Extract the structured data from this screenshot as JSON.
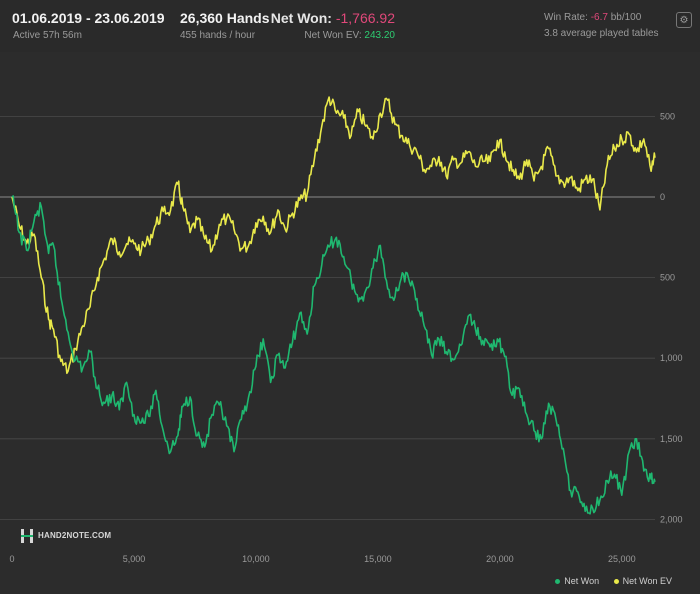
{
  "header": {
    "date_range": "01.06.2019 - 23.06.2019",
    "active": "Active 57h 56m",
    "hands": "26,360 Hands",
    "hands_per_hour": "455 hands / hour",
    "net_won_label": "Net Won:",
    "net_won_value": "-1,766.92",
    "net_won_ev_label": "Net Won  EV:",
    "net_won_ev_value": "243.20",
    "win_rate_label": "Win Rate:",
    "win_rate_value": "-6.7",
    "win_rate_unit": "bb/100",
    "avg_tables": "3.8 average played tables",
    "settings_icon": "gear-icon"
  },
  "logo_text": "HAND2NOTE.COM",
  "colors": {
    "net_won": "#1fb870",
    "net_won_ev": "#e9e94a",
    "background": "#2c2c2c"
  },
  "chart_data": {
    "type": "line",
    "xlim": [
      0,
      26360
    ],
    "ylim": [
      -2050,
      750
    ],
    "x_ticks": [
      {
        "value": 0,
        "label": "0"
      },
      {
        "value": 5000,
        "label": "5,000"
      },
      {
        "value": 10000,
        "label": "10,000"
      },
      {
        "value": 15000,
        "label": "15,000"
      },
      {
        "value": 20000,
        "label": "20,000"
      },
      {
        "value": 25000,
        "label": "25,000"
      }
    ],
    "y_ticks": [
      {
        "value": 500,
        "label": "500"
      },
      {
        "value": 0,
        "label": "0"
      },
      {
        "value": -500,
        "label": "500"
      },
      {
        "value": -1000,
        "label": "1,000"
      },
      {
        "value": -1500,
        "label": "1,500"
      },
      {
        "value": -2000,
        "label": "2,000"
      }
    ],
    "grid": true,
    "legend_position": "bottom-right",
    "series": [
      {
        "name": "Net Won",
        "color": "#1fb870",
        "x": [
          0,
          300,
          600,
          900,
          1200,
          1500,
          1700,
          2000,
          2300,
          2600,
          2900,
          3200,
          3500,
          3800,
          4100,
          4400,
          4700,
          5000,
          5300,
          5600,
          5900,
          6200,
          6500,
          6800,
          7000,
          7300,
          7600,
          7900,
          8200,
          8500,
          8800,
          9100,
          9400,
          9700,
          10000,
          10300,
          10600,
          10900,
          11200,
          11500,
          11800,
          12100,
          12400,
          12700,
          13000,
          13300,
          13600,
          13900,
          14200,
          14500,
          14800,
          15100,
          15400,
          15700,
          16000,
          16300,
          16600,
          16900,
          17200,
          17500,
          17800,
          18100,
          18400,
          18700,
          19000,
          19300,
          19600,
          19900,
          20200,
          20500,
          20800,
          21100,
          21400,
          21700,
          22000,
          22300,
          22600,
          22900,
          23200,
          23500,
          23800,
          24100,
          24400,
          24700,
          25000,
          25300,
          25600,
          25900,
          26200,
          26360
        ],
        "y": [
          0,
          -220,
          -330,
          -150,
          -60,
          -350,
          -300,
          -620,
          -840,
          -1010,
          -1060,
          -960,
          -1190,
          -1280,
          -1230,
          -1320,
          -1150,
          -1350,
          -1400,
          -1360,
          -1200,
          -1450,
          -1580,
          -1480,
          -1300,
          -1240,
          -1480,
          -1550,
          -1350,
          -1290,
          -1420,
          -1580,
          -1380,
          -1240,
          -1050,
          -880,
          -1150,
          -980,
          -1060,
          -900,
          -720,
          -850,
          -550,
          -420,
          -310,
          -250,
          -370,
          -510,
          -650,
          -580,
          -440,
          -300,
          -570,
          -620,
          -470,
          -530,
          -630,
          -800,
          -980,
          -880,
          -960,
          -1010,
          -920,
          -740,
          -820,
          -890,
          -930,
          -880,
          -990,
          -1230,
          -1190,
          -1350,
          -1450,
          -1500,
          -1280,
          -1380,
          -1560,
          -1820,
          -1830,
          -1950,
          -1930,
          -1880,
          -1760,
          -1720,
          -1850,
          -1580,
          -1500,
          -1700,
          -1750,
          -1767
        ],
        "final_value": -1766.92
      },
      {
        "name": "Net Won  EV",
        "color": "#e9e94a",
        "x": [
          0,
          300,
          600,
          900,
          1200,
          1500,
          1700,
          2000,
          2300,
          2600,
          2900,
          3200,
          3500,
          3800,
          4100,
          4400,
          4700,
          5000,
          5300,
          5600,
          5900,
          6200,
          6500,
          6800,
          7000,
          7300,
          7600,
          7900,
          8200,
          8500,
          8800,
          9100,
          9400,
          9700,
          10000,
          10300,
          10600,
          10900,
          11200,
          11500,
          11800,
          12100,
          12400,
          12700,
          13000,
          13300,
          13600,
          13900,
          14200,
          14500,
          14800,
          15100,
          15400,
          15700,
          16000,
          16300,
          16600,
          16900,
          17200,
          17500,
          17800,
          18100,
          18400,
          18700,
          19000,
          19300,
          19600,
          19900,
          20200,
          20500,
          20800,
          21100,
          21400,
          21700,
          22000,
          22300,
          22600,
          22900,
          23200,
          23500,
          23800,
          24100,
          24400,
          24700,
          25000,
          25300,
          25600,
          25900,
          26200,
          26360
        ],
        "y": [
          0,
          -180,
          -290,
          -230,
          -500,
          -760,
          -820,
          -1020,
          -1080,
          -940,
          -800,
          -680,
          -500,
          -380,
          -260,
          -340,
          -290,
          -290,
          -330,
          -270,
          -170,
          -90,
          -80,
          80,
          -60,
          -220,
          -140,
          -260,
          -330,
          -170,
          -130,
          -200,
          -320,
          -300,
          -160,
          -120,
          -220,
          -80,
          -200,
          -100,
          -20,
          20,
          240,
          440,
          620,
          520,
          490,
          380,
          530,
          440,
          360,
          520,
          600,
          450,
          380,
          320,
          280,
          170,
          190,
          250,
          130,
          230,
          210,
          280,
          190,
          220,
          220,
          350,
          280,
          160,
          110,
          230,
          100,
          190,
          300,
          130,
          90,
          120,
          40,
          110,
          110,
          -80,
          200,
          300,
          360,
          390,
          280,
          360,
          160,
          243
        ],
        "final_value": 243.2
      }
    ]
  }
}
